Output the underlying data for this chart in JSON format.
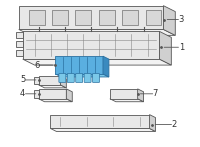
{
  "bg_color": "#ffffff",
  "line_color": "#888888",
  "line_color_dark": "#555555",
  "highlight_color": "#5aafe0",
  "highlight_edge": "#2a70a0",
  "part_face": "#e8e8e8",
  "part_face_light": "#f2f2f2",
  "part_face_dark": "#d0d0d0",
  "label_color": "#333333",
  "lw": 0.6,
  "lw_heavy": 0.9
}
